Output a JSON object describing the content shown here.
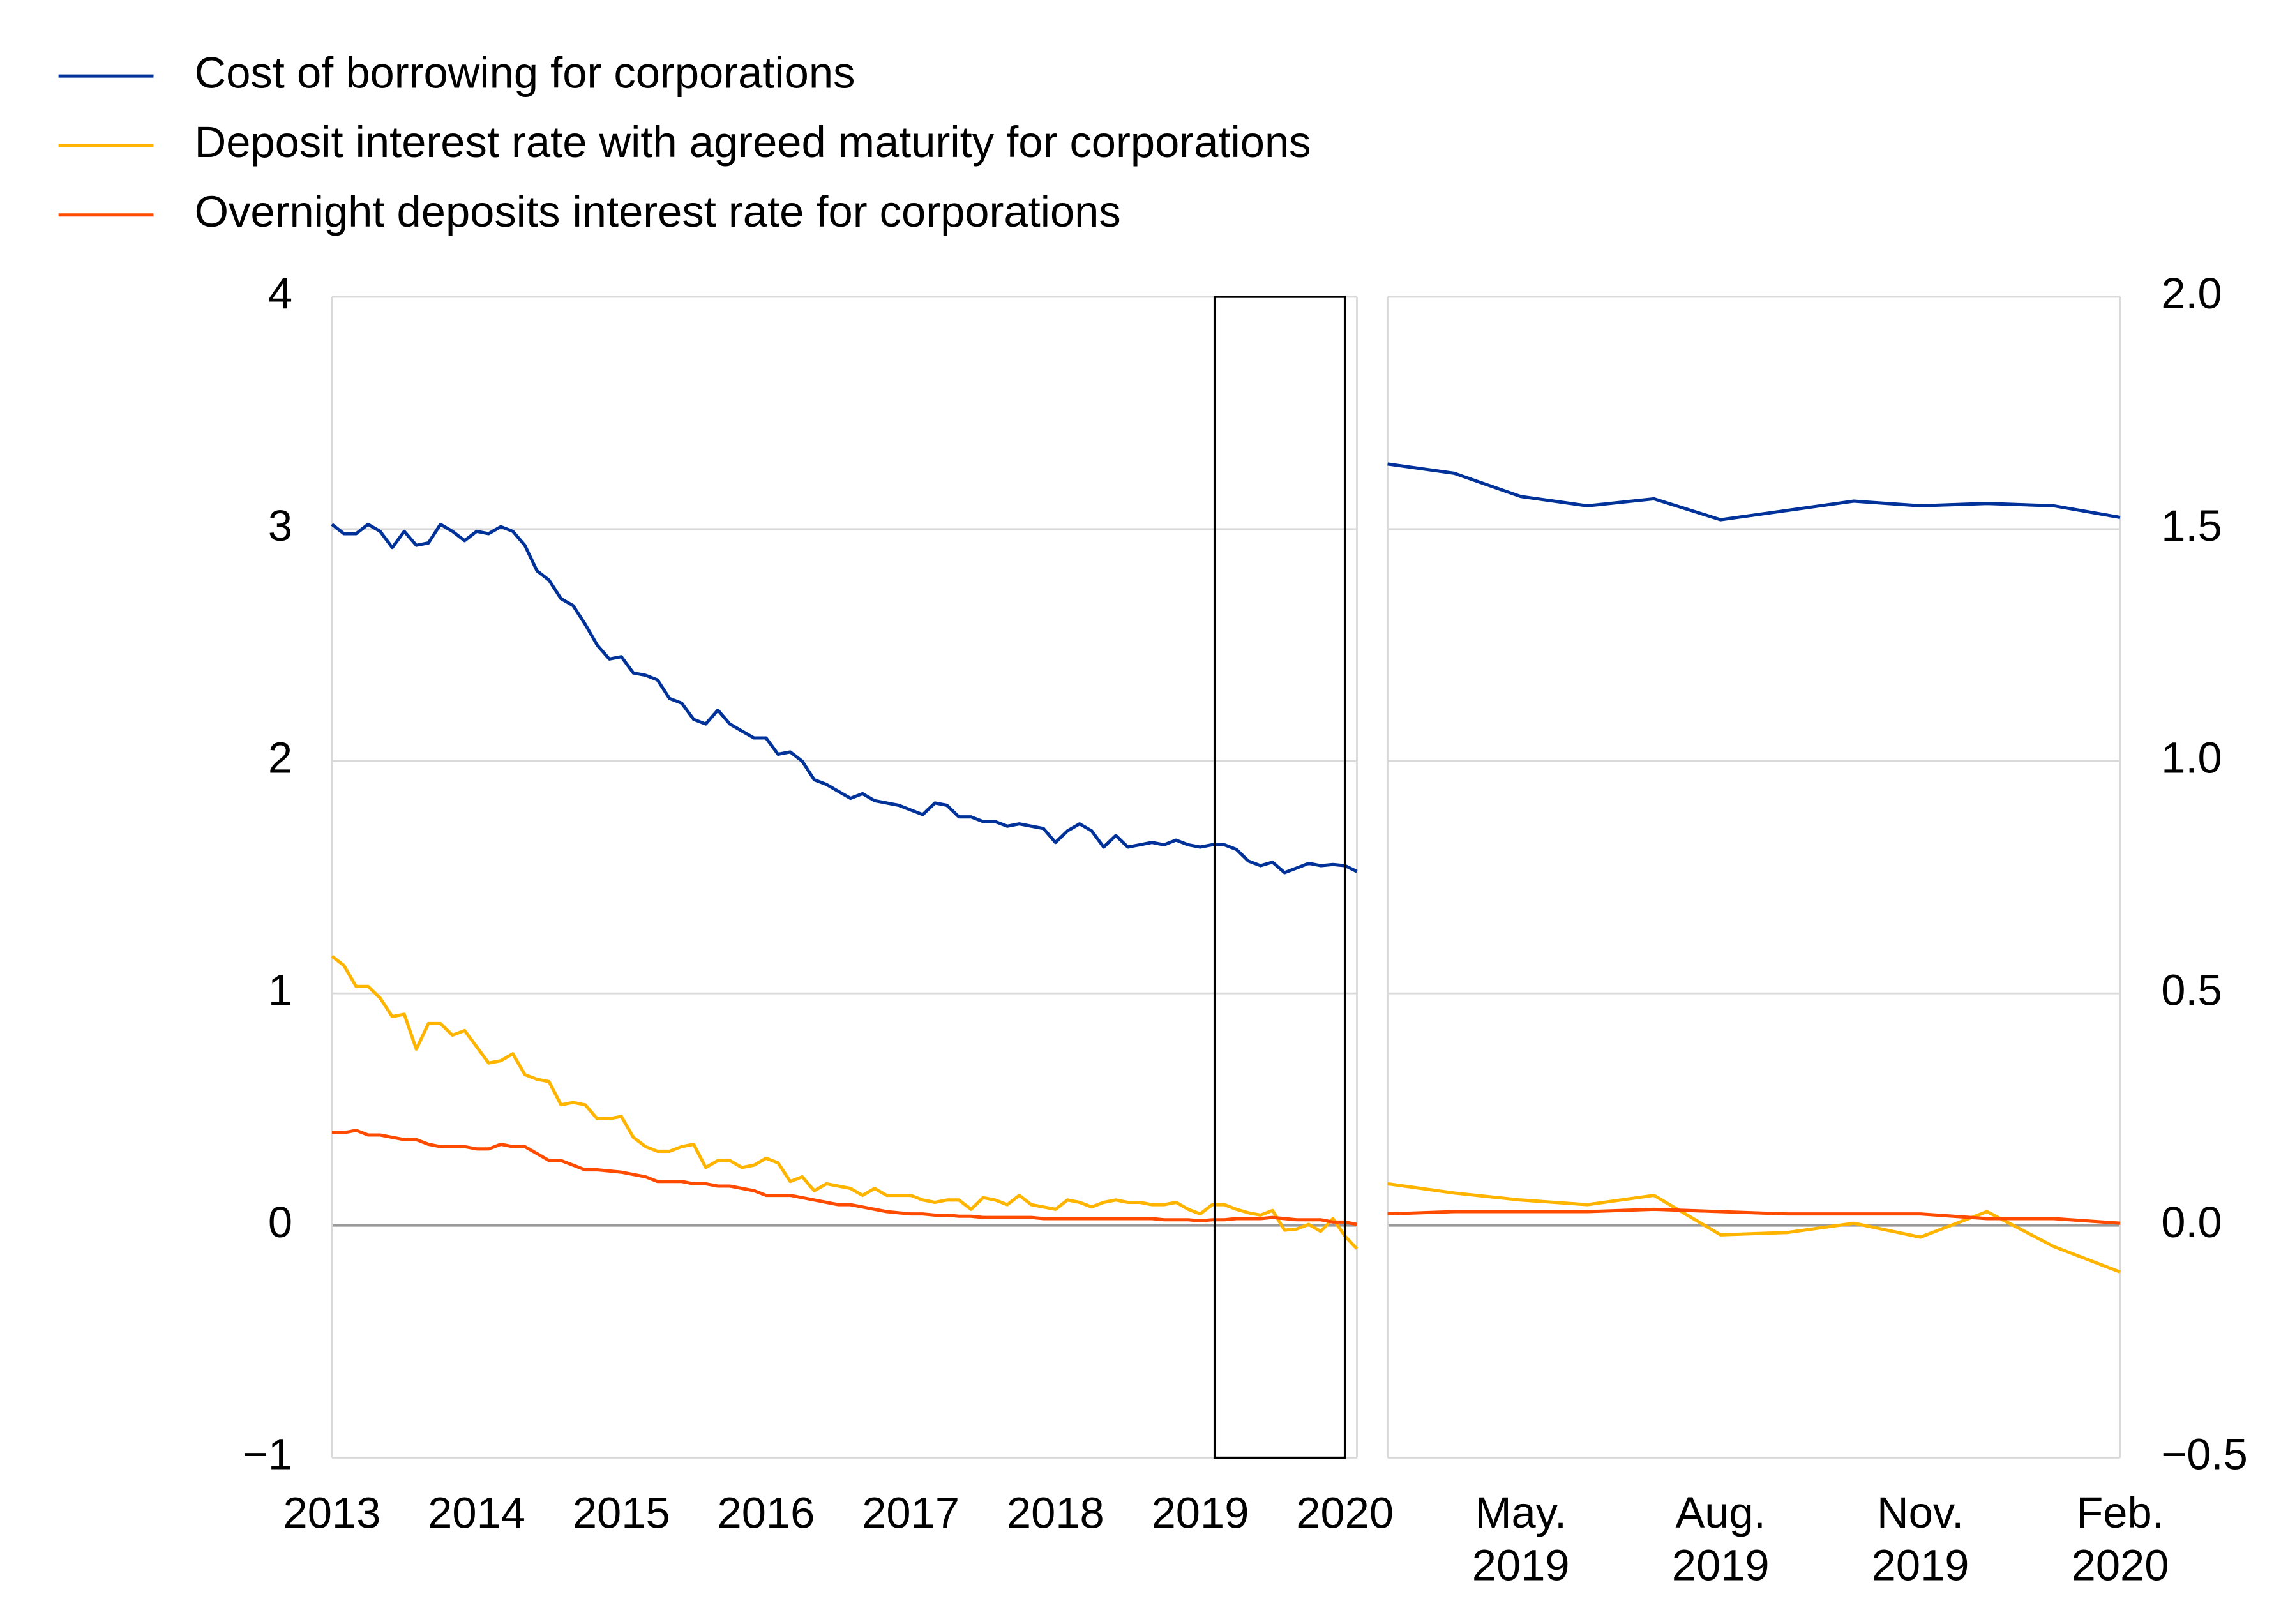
{
  "chart_data": [
    {
      "type": "line",
      "x": [
        2013,
        2013.083,
        2013.167,
        2013.25,
        2013.333,
        2013.417,
        2013.5,
        2013.583,
        2013.667,
        2013.75,
        2013.833,
        2013.917,
        2014,
        2014.083,
        2014.167,
        2014.25,
        2014.333,
        2014.417,
        2014.5,
        2014.583,
        2014.667,
        2014.75,
        2014.833,
        2014.917,
        2015,
        2015.083,
        2015.167,
        2015.25,
        2015.333,
        2015.417,
        2015.5,
        2015.583,
        2015.667,
        2015.75,
        2015.833,
        2015.917,
        2016,
        2016.083,
        2016.167,
        2016.25,
        2016.333,
        2016.417,
        2016.5,
        2016.583,
        2016.667,
        2016.75,
        2016.833,
        2016.917,
        2017,
        2017.083,
        2017.167,
        2017.25,
        2017.333,
        2017.417,
        2017.5,
        2017.583,
        2017.667,
        2017.75,
        2017.833,
        2017.917,
        2018,
        2018.083,
        2018.167,
        2018.25,
        2018.333,
        2018.417,
        2018.5,
        2018.583,
        2018.667,
        2018.75,
        2018.833,
        2018.917,
        2019,
        2019.083,
        2019.167,
        2019.25,
        2019.333,
        2019.417,
        2019.5,
        2019.583,
        2019.667,
        2019.75,
        2019.833,
        2019.917,
        2020,
        2020.083
      ],
      "series": [
        {
          "name": "Cost of borrowing for corporations",
          "color": "#003299",
          "values": [
            3.02,
            2.98,
            2.98,
            3.02,
            2.99,
            2.92,
            2.99,
            2.93,
            2.94,
            3.02,
            2.99,
            2.95,
            2.99,
            2.98,
            3.01,
            2.99,
            2.93,
            2.82,
            2.78,
            2.7,
            2.67,
            2.59,
            2.5,
            2.44,
            2.45,
            2.38,
            2.37,
            2.35,
            2.27,
            2.25,
            2.18,
            2.16,
            2.22,
            2.16,
            2.13,
            2.1,
            2.1,
            2.03,
            2.04,
            2.0,
            1.92,
            1.9,
            1.87,
            1.84,
            1.86,
            1.83,
            1.82,
            1.81,
            1.79,
            1.77,
            1.82,
            1.81,
            1.76,
            1.76,
            1.74,
            1.74,
            1.72,
            1.73,
            1.72,
            1.71,
            1.65,
            1.7,
            1.73,
            1.7,
            1.63,
            1.68,
            1.63,
            1.64,
            1.65,
            1.64,
            1.66,
            1.64,
            1.63,
            1.64,
            1.64,
            1.62,
            1.57,
            1.55,
            1.565,
            1.52,
            1.54,
            1.56,
            1.55,
            1.555,
            1.55,
            1.525
          ]
        },
        {
          "name": "Deposit interest rate with agreed maturity for corporations",
          "color": "#ffb400",
          "values": [
            1.16,
            1.12,
            1.03,
            1.03,
            0.98,
            0.9,
            0.91,
            0.76,
            0.87,
            0.87,
            0.82,
            0.84,
            0.77,
            0.7,
            0.71,
            0.74,
            0.65,
            0.63,
            0.62,
            0.52,
            0.53,
            0.52,
            0.46,
            0.46,
            0.47,
            0.38,
            0.34,
            0.32,
            0.32,
            0.34,
            0.35,
            0.25,
            0.28,
            0.28,
            0.25,
            0.26,
            0.29,
            0.27,
            0.19,
            0.21,
            0.15,
            0.18,
            0.17,
            0.16,
            0.13,
            0.16,
            0.13,
            0.13,
            0.13,
            0.11,
            0.1,
            0.11,
            0.11,
            0.07,
            0.12,
            0.11,
            0.09,
            0.13,
            0.09,
            0.08,
            0.07,
            0.11,
            0.1,
            0.08,
            0.1,
            0.11,
            0.1,
            0.1,
            0.09,
            0.09,
            0.1,
            0.07,
            0.05,
            0.09,
            0.09,
            0.07,
            0.055,
            0.045,
            0.065,
            -0.02,
            -0.015,
            0.005,
            -0.025,
            0.03,
            -0.045,
            -0.1
          ]
        },
        {
          "name": "Overnight deposits interest rate for corporations",
          "color": "#ff4b00",
          "values": [
            0.4,
            0.4,
            0.41,
            0.39,
            0.39,
            0.38,
            0.37,
            0.37,
            0.35,
            0.34,
            0.34,
            0.34,
            0.33,
            0.33,
            0.35,
            0.34,
            0.34,
            0.31,
            0.28,
            0.28,
            0.26,
            0.24,
            0.24,
            0.235,
            0.23,
            0.22,
            0.21,
            0.19,
            0.19,
            0.19,
            0.18,
            0.18,
            0.17,
            0.17,
            0.16,
            0.15,
            0.13,
            0.13,
            0.13,
            0.12,
            0.11,
            0.1,
            0.09,
            0.09,
            0.08,
            0.07,
            0.06,
            0.055,
            0.05,
            0.05,
            0.045,
            0.045,
            0.04,
            0.04,
            0.035,
            0.035,
            0.035,
            0.035,
            0.035,
            0.03,
            0.03,
            0.03,
            0.03,
            0.03,
            0.03,
            0.03,
            0.03,
            0.03,
            0.03,
            0.025,
            0.025,
            0.025,
            0.02,
            0.025,
            0.025,
            0.03,
            0.03,
            0.03,
            0.035,
            0.03,
            0.025,
            0.025,
            0.025,
            0.015,
            0.015,
            0.005
          ]
        }
      ],
      "xlim": [
        2013,
        2020.083
      ],
      "xticks": [
        2013,
        2014,
        2015,
        2016,
        2017,
        2018,
        2019,
        2020
      ],
      "ylim": [
        -1,
        4
      ],
      "yticks": [
        {
          "value": -1,
          "label": "−1"
        },
        0,
        1,
        2,
        3,
        4
      ],
      "highlight_x": [
        2019.1,
        2020.0
      ],
      "grid": true,
      "legend": "top-left"
    },
    {
      "type": "line",
      "categories": [
        null,
        null,
        "May. 2019",
        null,
        null,
        "Aug. 2019",
        null,
        null,
        "Nov. 2019",
        null,
        null,
        "Feb. 2020"
      ],
      "series": [
        {
          "color": "#003299",
          "axis": "y2",
          "values": [
            1.64,
            1.62,
            1.57,
            1.55,
            1.565,
            1.52,
            1.54,
            1.56,
            1.55,
            1.555,
            1.55,
            1.525
          ]
        },
        {
          "color": "#ffb400",
          "axis": "y2",
          "values": [
            0.09,
            0.07,
            0.055,
            0.045,
            0.065,
            -0.02,
            -0.015,
            0.005,
            -0.025,
            0.03,
            -0.045,
            -0.1
          ]
        },
        {
          "color": "#ff4b00",
          "axis": "y2",
          "values": [
            0.025,
            0.03,
            0.03,
            0.03,
            0.035,
            0.03,
            0.025,
            0.025,
            0.025,
            0.015,
            0.015,
            0.005
          ]
        }
      ],
      "y2lim": [
        -0.5,
        2.0
      ],
      "y2ticks": [
        {
          "value": -0.5,
          "label": "−0.5"
        },
        {
          "value": 0,
          "label": "0.0"
        },
        0.5,
        {
          "value": 1,
          "label": "1.0"
        },
        1.5,
        {
          "value": 2,
          "label": "2.0"
        }
      ],
      "grid": true
    }
  ]
}
